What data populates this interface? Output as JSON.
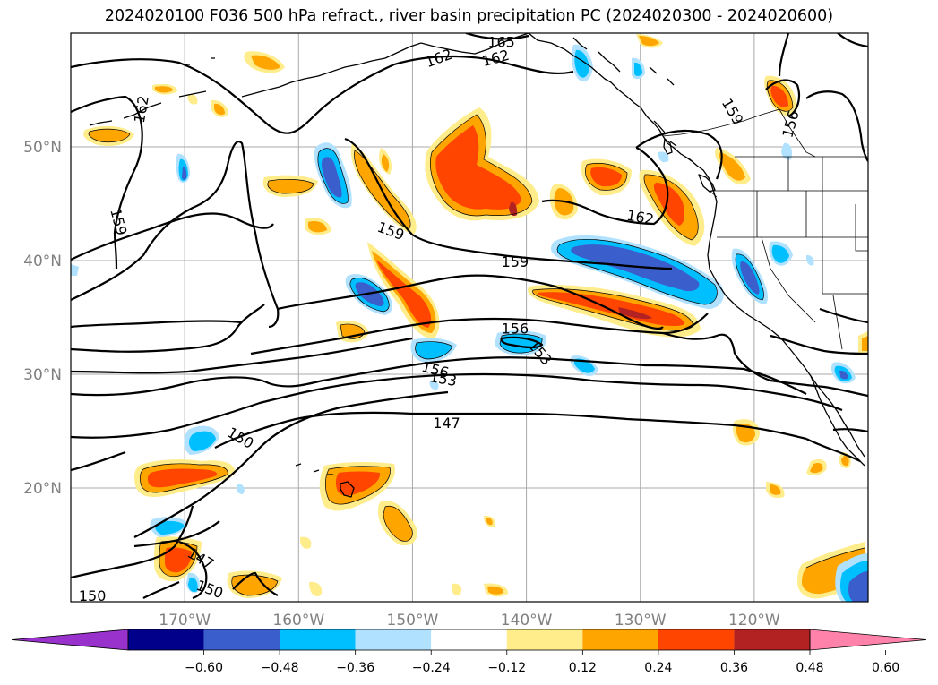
{
  "title": "2024020100 F036 500 hPa refract., river basin precipitation PC (2024020300 - 2024020600)",
  "map": {
    "lon_range": [
      -180,
      -110
    ],
    "lat_range": [
      10,
      60
    ],
    "lat_ticks": [
      {
        "value": 50,
        "label": "50°N"
      },
      {
        "value": 40,
        "label": "40°N"
      },
      {
        "value": 30,
        "label": "30°N"
      },
      {
        "value": 20,
        "label": "20°N"
      }
    ],
    "lon_ticks": [
      {
        "value": -170,
        "label": "170°W"
      },
      {
        "value": -160,
        "label": "160°W"
      },
      {
        "value": -150,
        "label": "150°W"
      },
      {
        "value": -140,
        "label": "140°W"
      },
      {
        "value": -130,
        "label": "130°W"
      },
      {
        "value": -120,
        "label": "120°W"
      }
    ],
    "grid": true,
    "contour_labels": [
      {
        "text": "165",
        "lon": -142.2,
        "lat": 59.2,
        "rot": 0
      },
      {
        "text": "162",
        "lon": -147.7,
        "lat": 57.8,
        "rot": 20
      },
      {
        "text": "162",
        "lon": -142.7,
        "lat": 57.8,
        "rot": 15
      },
      {
        "text": "162",
        "lon": -173.8,
        "lat": 53.3,
        "rot": 80
      },
      {
        "text": "159",
        "lon": -175.8,
        "lat": 43.4,
        "rot": -75
      },
      {
        "text": "159",
        "lon": -151.9,
        "lat": 42.6,
        "rot": -20
      },
      {
        "text": "159",
        "lon": -141.0,
        "lat": 39.9,
        "rot": 0
      },
      {
        "text": "162",
        "lon": -130.0,
        "lat": 43.8,
        "rot": -10
      },
      {
        "text": "159",
        "lon": -121.9,
        "lat": 53.1,
        "rot": -60
      },
      {
        "text": "156",
        "lon": -116.8,
        "lat": 52.0,
        "rot": 75
      },
      {
        "text": "156",
        "lon": -141.0,
        "lat": 34.0,
        "rot": 0
      },
      {
        "text": "156",
        "lon": -148.0,
        "lat": 30.4,
        "rot": -15
      },
      {
        "text": "153",
        "lon": -147.3,
        "lat": 29.6,
        "rot": -10
      },
      {
        "text": "153",
        "lon": -138.8,
        "lat": 31.9,
        "rot": -50
      },
      {
        "text": "150",
        "lon": -165.1,
        "lat": 24.4,
        "rot": -30
      },
      {
        "text": "147",
        "lon": -147.0,
        "lat": 25.7,
        "rot": 0
      },
      {
        "text": "147",
        "lon": -168.6,
        "lat": 13.8,
        "rot": -30
      },
      {
        "text": "150",
        "lon": -167.8,
        "lat": 11.1,
        "rot": -20
      },
      {
        "text": "150",
        "lon": -178.1,
        "lat": 10.5,
        "rot": 0
      }
    ]
  },
  "colorbar": {
    "levels": [
      -0.6,
      -0.48,
      -0.36,
      -0.24,
      -0.12,
      0.12,
      0.24,
      0.36,
      0.48,
      0.6
    ],
    "tick_labels": [
      "−0.60",
      "−0.48",
      "−0.36",
      "−0.24",
      "−0.12",
      "0.12",
      "0.24",
      "0.36",
      "0.48",
      "0.60"
    ],
    "colors": [
      "#9932cc",
      "#00008b",
      "#3a5fcd",
      "#00bfff",
      "#b0e2ff",
      "#ffffff",
      "#ffec8b",
      "#ffa500",
      "#ff4500",
      "#b22222",
      "#ff82ab"
    ],
    "extend": "both"
  }
}
